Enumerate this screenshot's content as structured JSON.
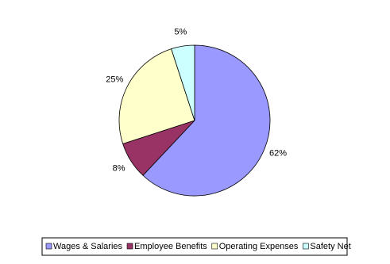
{
  "chart_data": {
    "type": "pie",
    "categories": [
      "Wages & Salaries",
      "Employee Benefits",
      "Operating Expenses",
      "Safety Net"
    ],
    "values": [
      62,
      8,
      25,
      5
    ],
    "value_labels": [
      "62%",
      "8%",
      "25%",
      "5%"
    ],
    "colors": [
      "#9999ff",
      "#993366",
      "#ffffcc",
      "#ccffff"
    ]
  }
}
